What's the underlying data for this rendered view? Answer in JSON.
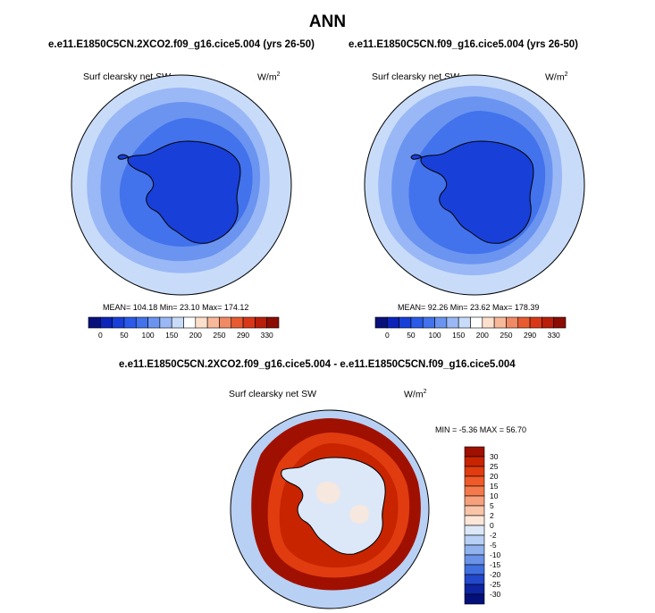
{
  "page": {
    "title": "ANN"
  },
  "panels": [
    {
      "case": "e.e11.E1850C5CN.2XCO2.f09_g16.cice5.004 (yrs 26-50)",
      "variable": "Surf clearsky net SW",
      "units_base": "W/m",
      "units_exp": "2",
      "stats": "MEAN= 104.18  Min=  23.10  Max= 174.12"
    },
    {
      "case": "e.e11.E1850C5CN.f09_g16.cice5.004 (yrs 26-50)",
      "variable": "Surf clearsky net SW",
      "units_base": "W/m",
      "units_exp": "2",
      "stats": "MEAN=  92.26  Min=  23.62  Max= 178.39"
    },
    {
      "case": "e.e11.E1850C5CN.2XCO2.f09_g16.cice5.004 - e.e11.E1850C5CN.f09_g16.cice5.004",
      "variable": "Surf clearsky net SW",
      "units_base": "W/m",
      "units_exp": "2",
      "stats": "MIN =  -5.36 MAX =  56.70"
    }
  ],
  "chart_data": [
    {
      "type": "heatmap",
      "projection": "south-polar-stereographic",
      "colorbar": {
        "orientation": "horizontal",
        "labels": [
          "0",
          "50",
          "100",
          "150",
          "200",
          "250",
          "290",
          "330"
        ],
        "colors": [
          "#08107a",
          "#0c24b8",
          "#1840d8",
          "#2a5ae8",
          "#4272ec",
          "#6a94f0",
          "#9ab8f6",
          "#c8dcfa",
          "#ffffff",
          "#fde0cc",
          "#f8b89a",
          "#f08a64",
          "#e85a30",
          "#d83818",
          "#b81e0a",
          "#8a0c02"
        ]
      },
      "annotations": {
        "mean": 104.18,
        "min": 23.1,
        "max": 174.12
      }
    },
    {
      "type": "heatmap",
      "projection": "south-polar-stereographic",
      "colorbar": {
        "orientation": "horizontal",
        "labels": [
          "0",
          "50",
          "100",
          "150",
          "200",
          "250",
          "290",
          "330"
        ],
        "colors": [
          "#08107a",
          "#0c24b8",
          "#1840d8",
          "#2a5ae8",
          "#4272ec",
          "#6a94f0",
          "#9ab8f6",
          "#c8dcfa",
          "#ffffff",
          "#fde0cc",
          "#f8b89a",
          "#f08a64",
          "#e85a30",
          "#d83818",
          "#b81e0a",
          "#8a0c02"
        ]
      },
      "annotations": {
        "mean": 92.26,
        "min": 23.62,
        "max": 178.39
      }
    },
    {
      "type": "heatmap",
      "projection": "south-polar-stereographic",
      "colorbar": {
        "orientation": "vertical",
        "labels": [
          "30",
          "25",
          "20",
          "15",
          "10",
          "5",
          "2",
          "0",
          "-2",
          "-5",
          "-10",
          "-15",
          "-20",
          "-25",
          "-30"
        ],
        "colors": [
          "#a01000",
          "#c82400",
          "#e03c10",
          "#f05a28",
          "#f47a4c",
          "#f6a07c",
          "#f9c4a8",
          "#fde6d8",
          "#dce8f8",
          "#b8d0f4",
          "#90b2ee",
          "#6a92e8",
          "#4070e0",
          "#2248cc",
          "#0e24a0",
          "#04107a"
        ]
      },
      "annotations": {
        "min": -5.36,
        "max": 56.7
      }
    }
  ]
}
